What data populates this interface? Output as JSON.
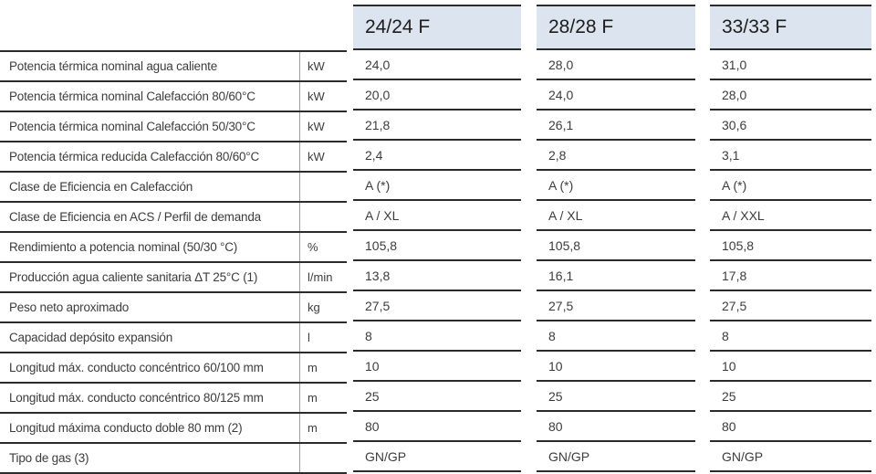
{
  "header": {
    "models": [
      "24/24 F",
      "28/28 F",
      "33/33 F"
    ]
  },
  "rows": [
    {
      "label": "Potencia térmica nominal agua caliente",
      "unit": "kW",
      "values": [
        "24,0",
        "28,0",
        "31,0"
      ]
    },
    {
      "label": "Potencia térmica nominal Calefacción 80/60°C",
      "unit": "kW",
      "values": [
        "20,0",
        "24,0",
        "28,0"
      ]
    },
    {
      "label": "Potencia térmica nominal Calefacción 50/30°C",
      "unit": "kW",
      "values": [
        "21,8",
        "26,1",
        "30,6"
      ]
    },
    {
      "label": "Potencia térmica reducida Calefacción 80/60°C",
      "unit": "kW",
      "values": [
        "2,4",
        "2,8",
        "3,1"
      ]
    },
    {
      "label": "Clase de Eficiencia en Calefacción",
      "unit": "",
      "values": [
        "A (*)",
        "A (*)",
        "A (*)"
      ]
    },
    {
      "label": "Clase de Eficiencia en ACS / Perfil de demanda",
      "unit": "",
      "values": [
        "A / XL",
        "A / XL",
        "A / XXL"
      ]
    },
    {
      "label": "Rendimiento a potencia nominal (50/30 °C)",
      "unit": "%",
      "values": [
        "105,8",
        "105,8",
        "105,8"
      ]
    },
    {
      "label": "Producción agua caliente sanitaria ΔT 25°C (1)",
      "unit": "l/min",
      "values": [
        "13,8",
        "16,1",
        "17,8"
      ]
    },
    {
      "label": "Peso neto aproximado",
      "unit": "kg",
      "values": [
        "27,5",
        "27,5",
        "27,5"
      ]
    },
    {
      "label": "Capacidad depósito expansión",
      "unit": "l",
      "values": [
        "8",
        "8",
        "8"
      ]
    },
    {
      "label": "Longitud máx. conducto concéntrico 60/100 mm",
      "unit": "m",
      "values": [
        "10",
        "10",
        "10"
      ]
    },
    {
      "label": "Longitud máx. conducto concéntrico 80/125 mm",
      "unit": "m",
      "values": [
        "25",
        "25",
        "25"
      ]
    },
    {
      "label": "Longitud máxima conducto doble 80 mm (2)",
      "unit": "m",
      "values": [
        "80",
        "80",
        "80"
      ]
    },
    {
      "label": "Tipo de gas (3)",
      "unit": "",
      "values": [
        "GN/GP",
        "GN/GP",
        "GN/GP"
      ]
    }
  ],
  "colors": {
    "header_bg": "#dbe4ef",
    "rule": "#2b2b2a",
    "text": "#3c3c3b",
    "header_text": "#1d1d1b",
    "unit_divider": "#9e9e9e"
  }
}
